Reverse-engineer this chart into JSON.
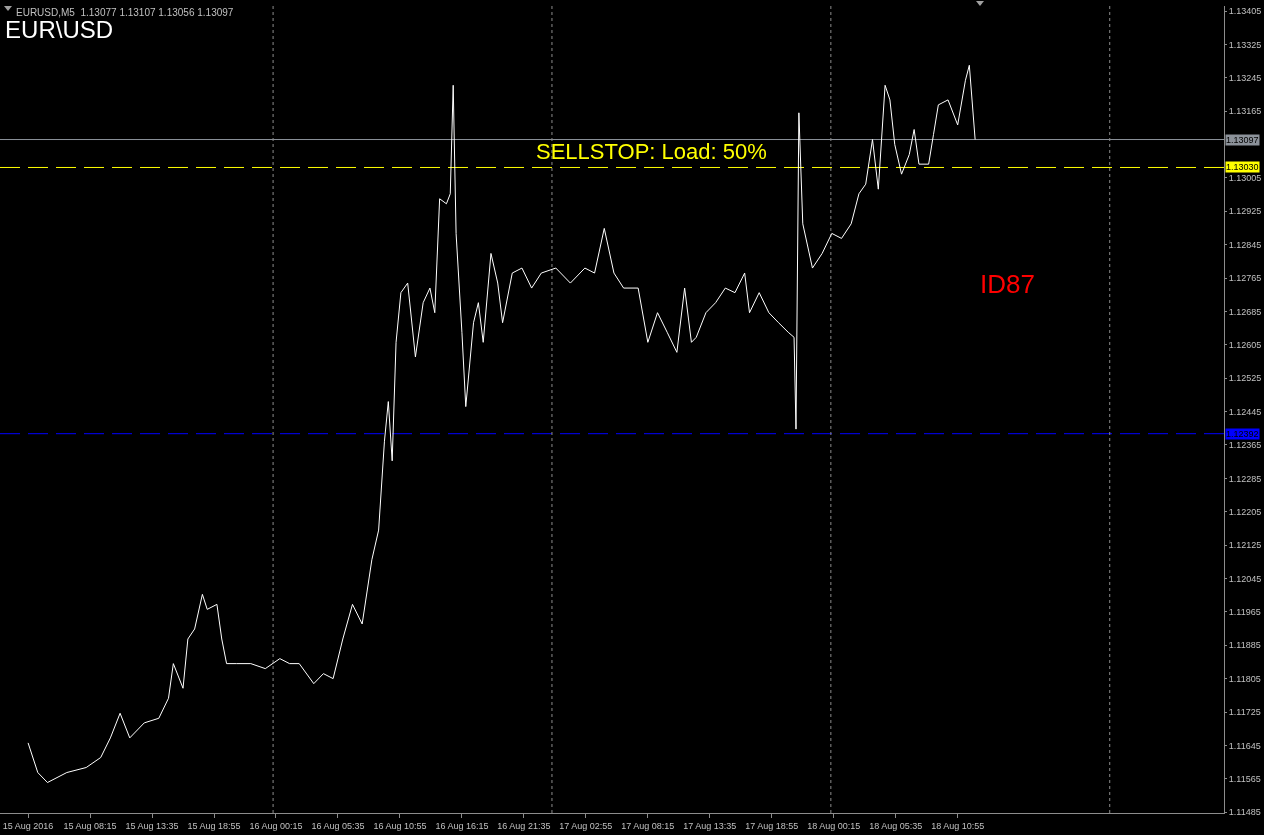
{
  "chart_data": {
    "type": "line",
    "title": "EUR\\USD",
    "annotations": [
      "EURUSD,M5  1.13077 1.13107 1.13056 1.13097",
      "SELLSTOP: Load: 50%",
      "ID87"
    ],
    "x": [
      "2016-08-15T02:55",
      "2016-08-15T03:45",
      "2016-08-15T04:35",
      "2016-08-15T06:15",
      "2016-08-15T07:55",
      "2016-08-15T09:10",
      "2016-08-15T10:00",
      "2016-08-15T10:50",
      "2016-08-15T11:40",
      "2016-08-15T12:55",
      "2016-08-15T14:10",
      "2016-08-15T15:00",
      "2016-08-15T15:25",
      "2016-08-15T16:15",
      "2016-08-15T16:40",
      "2016-08-15T17:15",
      "2016-08-15T17:55",
      "2016-08-15T18:20",
      "2016-08-15T19:10",
      "2016-08-15T19:35",
      "2016-08-15T20:00",
      "2016-08-15T20:50",
      "2016-08-15T22:05",
      "2016-08-15T23:20",
      "2016-08-16T00:35",
      "2016-08-16T01:25",
      "2016-08-16T02:15",
      "2016-08-16T03:30",
      "2016-08-16T04:20",
      "2016-08-16T05:10",
      "2016-08-16T06:00",
      "2016-08-16T06:50",
      "2016-08-16T07:40",
      "2016-08-16T08:30",
      "2016-08-16T09:05",
      "2016-08-16T09:35",
      "2016-08-16T09:55",
      "2016-08-16T10:15",
      "2016-08-16T10:35",
      "2016-08-16T11:00",
      "2016-08-16T11:35",
      "2016-08-16T12:15",
      "2016-08-16T12:55",
      "2016-08-16T13:30",
      "2016-08-16T13:55",
      "2016-08-16T14:20",
      "2016-08-16T14:55",
      "2016-08-16T15:15",
      "2016-08-16T15:30",
      "2016-08-16T15:45",
      "2016-08-16T16:15",
      "2016-08-16T16:35",
      "2016-08-16T17:15",
      "2016-08-16T17:40",
      "2016-08-16T18:05",
      "2016-08-16T18:45",
      "2016-08-16T19:20",
      "2016-08-16T19:45",
      "2016-08-16T20:35",
      "2016-08-16T21:25",
      "2016-08-16T22:15",
      "2016-08-16T23:05",
      "2016-08-17T00:20",
      "2016-08-17T01:35",
      "2016-08-17T02:50",
      "2016-08-17T03:40",
      "2016-08-17T04:30",
      "2016-08-17T05:20",
      "2016-08-17T06:10",
      "2016-08-17T07:25",
      "2016-08-17T08:15",
      "2016-08-17T09:05",
      "2016-08-17T09:55",
      "2016-08-17T10:45",
      "2016-08-17T11:25",
      "2016-08-17T12:00",
      "2016-08-17T12:25",
      "2016-08-17T13:15",
      "2016-08-17T14:05",
      "2016-08-17T14:55",
      "2016-08-17T15:45",
      "2016-08-17T16:35",
      "2016-08-17T17:00",
      "2016-08-17T17:50",
      "2016-08-17T18:40",
      "2016-08-17T19:30",
      "2016-08-17T20:20",
      "2016-08-17T20:50",
      "2016-08-17T21:00",
      "2016-08-17T21:15",
      "2016-08-17T21:35",
      "2016-08-17T22:25",
      "2016-08-17T23:15",
      "2016-08-18T00:05",
      "2016-08-18T00:55",
      "2016-08-18T01:45",
      "2016-08-18T02:25",
      "2016-08-18T03:00",
      "2016-08-18T03:35",
      "2016-08-18T04:05",
      "2016-08-18T04:40",
      "2016-08-18T05:05",
      "2016-08-18T05:30",
      "2016-08-18T06:05",
      "2016-08-18T06:45",
      "2016-08-18T07:10",
      "2016-08-18T07:35",
      "2016-08-18T08:25",
      "2016-08-18T08:50",
      "2016-08-18T09:15",
      "2016-08-18T10:05",
      "2016-08-18T10:55",
      "2016-08-18T11:35",
      "2016-08-18T11:55",
      "2016-08-18T12:25"
    ],
    "series": [
      {
        "color": "#ffffff",
        "values": [
          1.11651,
          1.1158,
          1.11556,
          1.1158,
          1.11592,
          1.11616,
          1.11663,
          1.11722,
          1.11663,
          1.11699,
          1.1171,
          1.11758,
          1.11841,
          1.11782,
          1.119,
          1.11924,
          1.12007,
          1.11971,
          1.11983,
          1.119,
          1.11841,
          1.11841,
          1.11841,
          1.11829,
          1.11853,
          1.11841,
          1.11841,
          1.11793,
          1.11817,
          1.11805,
          1.119,
          1.11983,
          1.11936,
          1.1209,
          1.12161,
          1.12374,
          1.12469,
          1.12327,
          1.12611,
          1.1273,
          1.12753,
          1.12576,
          1.12706,
          1.12741,
          1.12682,
          1.12955,
          1.12943,
          1.12967,
          1.13227,
          1.12872,
          1.12635,
          1.12457,
          1.12658,
          1.12706,
          1.12611,
          1.12824,
          1.12753,
          1.12658,
          1.12777,
          1.12789,
          1.12741,
          1.12777,
          1.12789,
          1.12753,
          1.12789,
          1.12777,
          1.12884,
          1.12777,
          1.12741,
          1.12741,
          1.12611,
          1.12682,
          1.12635,
          1.12587,
          1.12741,
          1.12611,
          1.12623,
          1.12682,
          1.12706,
          1.12741,
          1.1273,
          1.12777,
          1.12682,
          1.1273,
          1.12682,
          1.12658,
          1.12635,
          1.12623,
          1.12403,
          1.13161,
          1.12895,
          1.12789,
          1.12824,
          1.12872,
          1.1286,
          1.12895,
          1.12967,
          1.1299,
          1.13097,
          1.12978,
          1.13227,
          1.13192,
          1.13085,
          1.13014,
          1.13061,
          1.13121,
          1.13038,
          1.13038,
          1.13109,
          1.1318,
          1.13192,
          1.13132,
          1.13239,
          1.13275,
          1.13097
        ]
      }
    ],
    "xlim": [
      "2016-08-15T00:30",
      "2016-08-19T09:50"
    ],
    "xticks": [
      {
        "value": "2016-08-15T02:55",
        "label": "15 Aug 2016"
      },
      {
        "value": "2016-08-15T08:15",
        "label": "15 Aug 08:15"
      },
      {
        "value": "2016-08-15T13:35",
        "label": "15 Aug 13:35"
      },
      {
        "value": "2016-08-15T18:55",
        "label": "15 Aug 18:55"
      },
      {
        "value": "2016-08-16T00:15",
        "label": "16 Aug 00:15"
      },
      {
        "value": "2016-08-16T05:35",
        "label": "16 Aug 05:35"
      },
      {
        "value": "2016-08-16T10:55",
        "label": "16 Aug 10:55"
      },
      {
        "value": "2016-08-16T16:15",
        "label": "16 Aug 16:15"
      },
      {
        "value": "2016-08-16T21:35",
        "label": "16 Aug 21:35"
      },
      {
        "value": "2016-08-17T02:55",
        "label": "17 Aug 02:55"
      },
      {
        "value": "2016-08-17T08:15",
        "label": "17 Aug 08:15"
      },
      {
        "value": "2016-08-17T13:35",
        "label": "17 Aug 13:35"
      },
      {
        "value": "2016-08-17T18:55",
        "label": "17 Aug 18:55"
      },
      {
        "value": "2016-08-18T00:15",
        "label": "18 Aug 00:15"
      },
      {
        "value": "2016-08-18T05:35",
        "label": "18 Aug 05:35"
      },
      {
        "value": "2016-08-18T10:55",
        "label": "18 Aug 10:55"
      }
    ],
    "ylim": [
      1.11483,
      1.13417
    ],
    "yticks": [
      1.13405,
      1.13325,
      1.13245,
      1.13165,
      1.13005,
      1.12925,
      1.12845,
      1.12765,
      1.12685,
      1.12605,
      1.12525,
      1.12445,
      1.12365,
      1.12285,
      1.12205,
      1.12125,
      1.12045,
      1.11965,
      1.11885,
      1.11805,
      1.11725,
      1.11645,
      1.11565,
      1.11485
    ],
    "ref_lines": [
      {
        "axis": "y",
        "value": 1.13097,
        "label": "1.13097",
        "color": "#8c929a",
        "line_style": "solid"
      },
      {
        "axis": "y",
        "value": 1.1303,
        "label": "1.13030",
        "color": "#ffff00",
        "line_style": "dashed"
      },
      {
        "axis": "y",
        "value": 1.12392,
        "label": "1.12392",
        "color": "#0000ff",
        "line_style": "dashed"
      },
      {
        "axis": "x",
        "value": "2016-08-16T00:00",
        "color": "#8c8c8c",
        "line_style": "dotted"
      },
      {
        "axis": "x",
        "value": "2016-08-17T00:00",
        "color": "#8c8c8c",
        "line_style": "dotted"
      },
      {
        "axis": "x",
        "value": "2016-08-18T00:00",
        "color": "#8c8c8c",
        "line_style": "dotted"
      },
      {
        "axis": "x",
        "value": "2016-08-19T00:00",
        "color": "#8c8c8c",
        "line_style": "dotted"
      }
    ],
    "grid": false,
    "legend": false,
    "marker": "none",
    "line_style": "solid"
  }
}
